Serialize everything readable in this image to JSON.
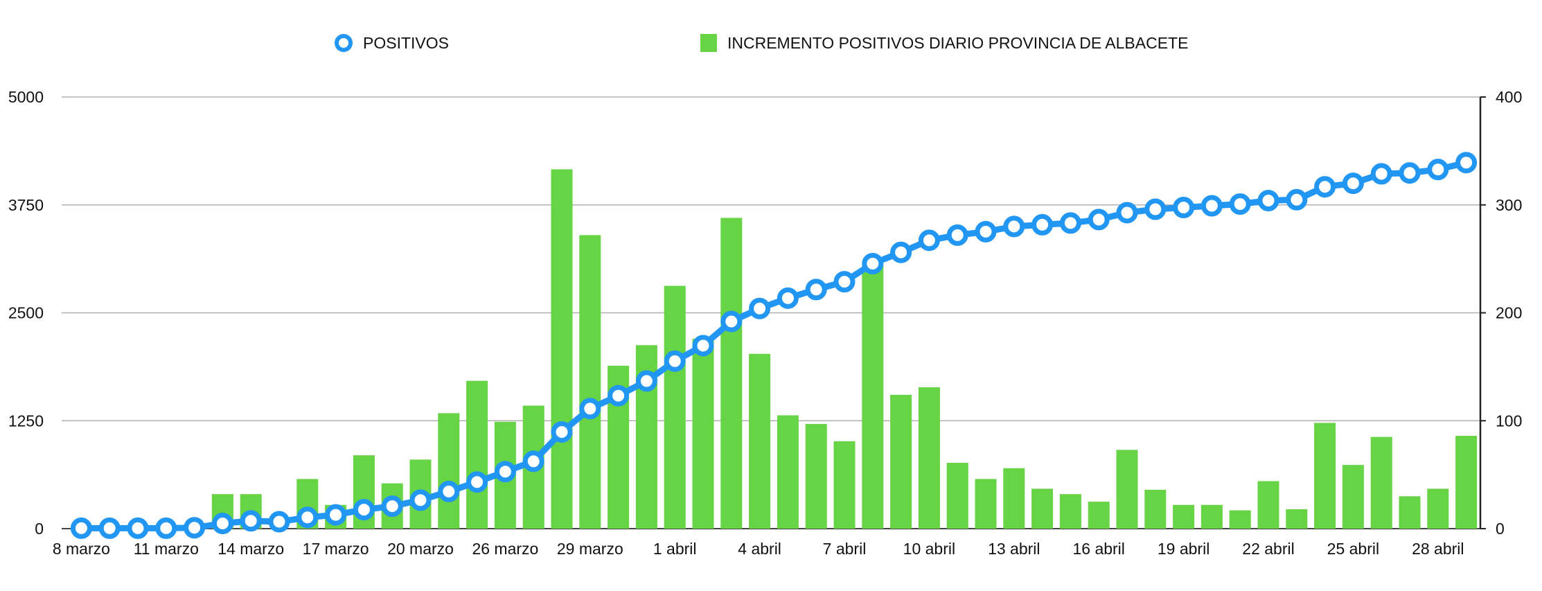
{
  "chart_data": {
    "type": "bar",
    "legend_position": "top",
    "grid": true,
    "categories": [
      "8 marzo",
      "9 marzo",
      "10 marzo",
      "11 marzo",
      "12 marzo",
      "13 marzo",
      "14 marzo",
      "15 marzo",
      "16 marzo",
      "17 marzo",
      "18 marzo",
      "19 marzo",
      "20 marzo",
      "21 marzo",
      "22 marzo",
      "26 marzo",
      "27 marzo",
      "28 marzo",
      "29 marzo",
      "30 marzo",
      "31 marzo",
      "1 abril",
      "2 abril",
      "3 abril",
      "4 abril",
      "5 abril",
      "6 abril",
      "7 abril",
      "8 abril",
      "9 abril",
      "10 abril",
      "11 abril",
      "12 abril",
      "13 abril",
      "14 abril",
      "15 abril",
      "16 abril",
      "17 abril",
      "18 abril",
      "19 abril",
      "20 abril",
      "21 abril",
      "22 abril",
      "23 abril",
      "24 abril",
      "25 abril",
      "26 abril",
      "27 abril",
      "28 abril",
      "29 abril"
    ],
    "x_tick_labels": [
      "8 marzo",
      "11 marzo",
      "14 marzo",
      "17 marzo",
      "20 marzo",
      "26 marzo",
      "29 marzo",
      "1 abril",
      "4 abril",
      "7 abril",
      "10 abril",
      "13 abril",
      "16 abril",
      "19 abril",
      "22 abril",
      "25 abril",
      "28 abril"
    ],
    "x_tick_indices": [
      0,
      3,
      6,
      9,
      12,
      15,
      18,
      21,
      24,
      27,
      30,
      33,
      36,
      39,
      42,
      45,
      48
    ],
    "y_left": {
      "ylim": [
        0,
        5000
      ],
      "ticks": [
        "0",
        "1250",
        "2500",
        "3750",
        "5000"
      ]
    },
    "y_right": {
      "ylim": [
        0,
        400
      ],
      "ticks": [
        "0",
        "100",
        "200",
        "300",
        "400"
      ]
    },
    "series": [
      {
        "name": "POSITIVOS",
        "kind": "line",
        "axis": "left",
        "color": "#2196f3",
        "values": [
          5,
          5,
          5,
          5,
          10,
          60,
          90,
          80,
          130,
          160,
          220,
          260,
          330,
          430,
          540,
          660,
          780,
          1120,
          1390,
          1540,
          1710,
          1940,
          2120,
          2400,
          2550,
          2670,
          2770,
          2860,
          3070,
          3200,
          3340,
          3400,
          3440,
          3500,
          3520,
          3540,
          3580,
          3660,
          3700,
          3720,
          3740,
          3760,
          3800,
          3810,
          3960,
          4000,
          4110,
          4120,
          4160,
          4240
        ]
      },
      {
        "name": "INCREMENTO POSITIVOS DIARIO PROVINCIA DE ALBACETE",
        "kind": "bar",
        "axis": "right",
        "color": "#66d444",
        "values": [
          0,
          0,
          0,
          0,
          0,
          32,
          32,
          0,
          46,
          22,
          68,
          42,
          64,
          107,
          137,
          99,
          114,
          333,
          272,
          151,
          170,
          225,
          176,
          288,
          162,
          105,
          97,
          81,
          244,
          124,
          131,
          61,
          46,
          56,
          37,
          32,
          25,
          73,
          36,
          22,
          22,
          17,
          44,
          18,
          98,
          59,
          85,
          30,
          37,
          86
        ]
      }
    ]
  }
}
